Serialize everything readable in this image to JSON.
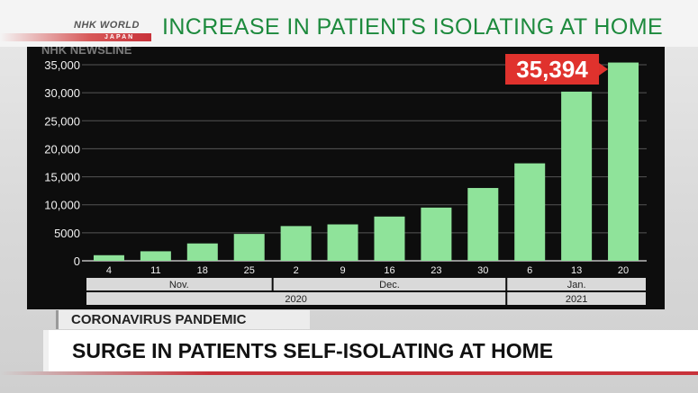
{
  "branding": {
    "logo_main": "NHK WORLD",
    "logo_sub": "JAPAN",
    "watermark": "NHK NEWSLINE"
  },
  "lower_third": {
    "tag": "CORONAVIRUS PANDEMIC",
    "headline": "SURGE IN PATIENTS SELF-ISOLATING AT HOME"
  },
  "colors": {
    "title_green": "#1d8a3d",
    "bar_green": "#8fe39a",
    "callout_red": "#e0322d",
    "panel_black": "#0d0d0d"
  },
  "chart_data": {
    "type": "bar",
    "title": "INCREASE IN PATIENTS ISOLATING AT HOME",
    "categories": [
      "4",
      "11",
      "18",
      "25",
      "2",
      "9",
      "16",
      "23",
      "30",
      "6",
      "13",
      "20"
    ],
    "values": [
      1000,
      1700,
      3100,
      4800,
      6200,
      6500,
      7900,
      9500,
      13000,
      17400,
      30200,
      35394
    ],
    "ylim": [
      0,
      35000
    ],
    "yticks": [
      "0",
      "5000",
      "10,000",
      "15,000",
      "20,000",
      "25,000",
      "30,000",
      "35,000"
    ],
    "ytick_values": [
      0,
      5000,
      10000,
      15000,
      20000,
      25000,
      30000,
      35000
    ],
    "grid": true,
    "months": [
      {
        "label": "Nov.",
        "start": 0,
        "end": 3
      },
      {
        "label": "Dec.",
        "start": 4,
        "end": 8
      },
      {
        "label": "Jan.",
        "start": 9,
        "end": 11
      }
    ],
    "years": [
      {
        "label": "2020",
        "start": 0,
        "end": 8
      },
      {
        "label": "2021",
        "start": 9,
        "end": 11
      }
    ],
    "callout": {
      "index": 11,
      "label": "35,394"
    }
  }
}
